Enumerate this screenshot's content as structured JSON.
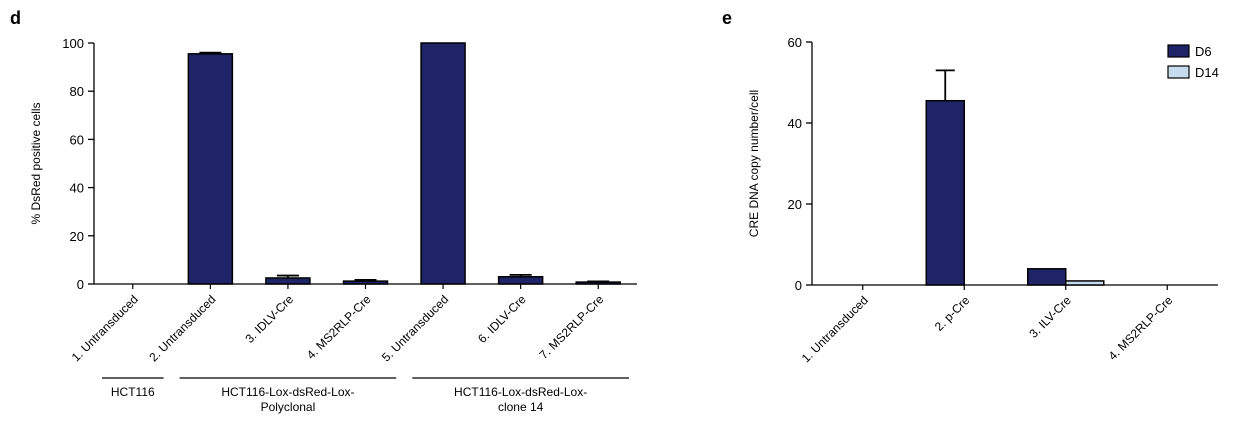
{
  "chart_data": [
    {
      "panel": "d",
      "type": "bar",
      "ylabel": "% DsRed positive cells",
      "xlabel": "",
      "ylim": [
        0,
        100
      ],
      "yticks": [
        0,
        20,
        40,
        60,
        80,
        100
      ],
      "categories": [
        "1. Untransduced",
        "2. Untransduced",
        "3. IDLV-Cre",
        "4. MS2RLP-Cre",
        "5. Untransduced",
        "6. IDLV-Cre",
        "7. MS2RLP-Cre"
      ],
      "series": [
        {
          "values": [
            0,
            95.5,
            2.5,
            1.2,
            100,
            3.0,
            0.8
          ],
          "errors": [
            0,
            0.5,
            1.0,
            0.5,
            0,
            0.8,
            0.3
          ],
          "color": "#1f2466"
        }
      ],
      "groups": [
        {
          "label": "HCT116",
          "from": 0,
          "to": 0
        },
        {
          "label": "HCT116-Lox-dsRed-Lox-\nPolyclonal",
          "from": 1,
          "to": 3
        },
        {
          "label": "HCT116-Lox-dsRed-Lox-\nclone 14",
          "from": 4,
          "to": 6
        }
      ]
    },
    {
      "panel": "e",
      "type": "bar",
      "ylabel": "CRE DNA copy number/cell",
      "xlabel": "",
      "ylim": [
        0,
        60
      ],
      "yticks": [
        0,
        20,
        40,
        60
      ],
      "categories": [
        "1. Untransduced",
        "2. p-Cre",
        "3. ILV-Cre",
        "4. MS2RLP-Cre"
      ],
      "series": [
        {
          "name": "D6",
          "values": [
            0,
            45.5,
            4.0,
            0
          ],
          "errors": [
            0,
            7.5,
            0,
            0
          ],
          "color": "#1f2466"
        },
        {
          "name": "D14",
          "values": [
            0,
            0,
            1.0,
            0
          ],
          "errors": [
            0,
            0,
            0,
            0
          ],
          "color": "#c6dcee"
        }
      ],
      "legend": "top-right"
    }
  ]
}
